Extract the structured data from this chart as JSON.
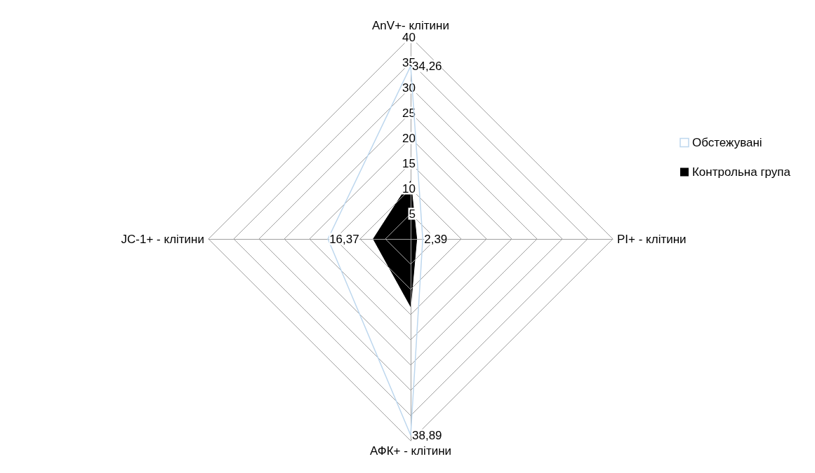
{
  "chart_data": {
    "type": "radar",
    "categories": [
      "AnV+- клітини",
      "PI+ - клітини",
      "АФК+ - клітини",
      "JC-1+ - клітини"
    ],
    "series": [
      {
        "name": "Обстежувані",
        "color": "#bdd7ee",
        "values": [
          34.26,
          2.39,
          38.89,
          16.37
        ],
        "value_labels": [
          "34,26",
          "2,39",
          "38,89",
          "16,37"
        ]
      },
      {
        "name": "Контрольна група",
        "color": "#000000",
        "values": [
          11.5,
          1.2,
          13.4,
          7.4
        ]
      }
    ],
    "ylim": [
      0,
      40
    ],
    "yticks": [
      5,
      10,
      15,
      20,
      25,
      30,
      35,
      40
    ],
    "grid": true,
    "legend": "right",
    "marker": "none"
  }
}
